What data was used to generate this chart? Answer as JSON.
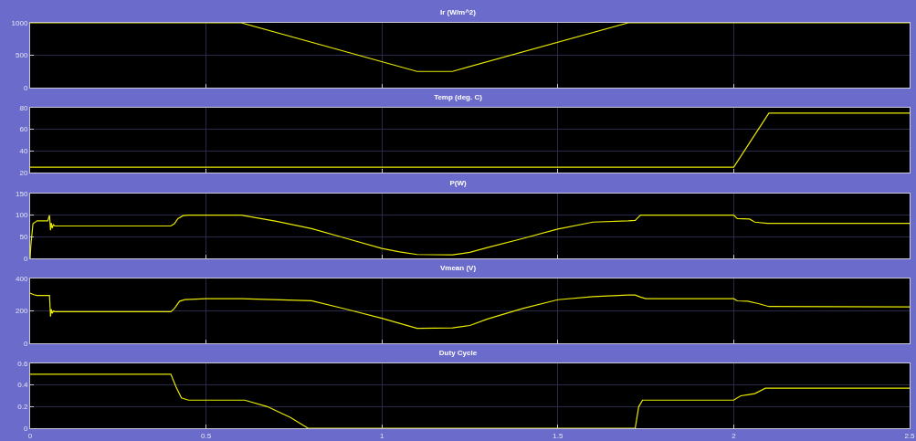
{
  "chart_data": [
    {
      "type": "line",
      "title": "Ir (W/m^2)",
      "color": "#e8e800",
      "marker": "none",
      "line_style": "solid",
      "grid": true,
      "tick_labels": "y",
      "xlim": [
        0,
        2.5
      ],
      "xticks": [
        0,
        0.5,
        1,
        1.5,
        2,
        2.5
      ],
      "ylim": [
        0,
        1000
      ],
      "yticks": [
        0,
        500,
        1000
      ],
      "x": [
        0,
        0.6,
        1.1,
        1.2,
        1.7,
        2.5
      ],
      "values": [
        1000,
        1000,
        250,
        250,
        1000,
        1000
      ]
    },
    {
      "type": "line",
      "title": "Temp (deg. C)",
      "color": "#e8e800",
      "marker": "none",
      "line_style": "solid",
      "grid": true,
      "tick_labels": "y",
      "xlim": [
        0,
        2.5
      ],
      "xticks": [
        0,
        0.5,
        1,
        1.5,
        2,
        2.5
      ],
      "ylim": [
        20,
        80
      ],
      "yticks": [
        20,
        40,
        60,
        80
      ],
      "x": [
        0,
        2.0,
        2.1,
        2.5
      ],
      "values": [
        25,
        25,
        75,
        75
      ]
    },
    {
      "type": "line",
      "title": "P(W)",
      "color": "#e8e800",
      "marker": "none",
      "line_style": "solid",
      "grid": true,
      "tick_labels": "y",
      "xlim": [
        0,
        2.5
      ],
      "xticks": [
        0,
        0.5,
        1,
        1.5,
        2,
        2.5
      ],
      "ylim": [
        0,
        150
      ],
      "yticks": [
        0,
        50,
        100,
        150
      ],
      "x": [
        0,
        0.002,
        0.008,
        0.02,
        0.05,
        0.055,
        0.058,
        0.06,
        0.063,
        0.066,
        0.07,
        0.4,
        0.41,
        0.42,
        0.435,
        0.45,
        0.6,
        0.7,
        0.8,
        0.9,
        1.0,
        1.05,
        1.1,
        1.2,
        1.25,
        1.3,
        1.4,
        1.5,
        1.6,
        1.7,
        1.72,
        1.735,
        2.0,
        2.01,
        2.045,
        2.06,
        2.095,
        2.5
      ],
      "values": [
        0,
        30,
        80,
        87,
        87,
        100,
        65,
        82,
        70,
        78,
        75,
        75,
        80,
        92,
        99,
        100,
        100,
        86,
        69,
        46,
        23,
        15,
        9,
        8,
        14,
        25,
        46,
        68,
        84,
        87,
        88,
        100,
        100,
        92,
        91,
        84,
        81,
        81
      ]
    },
    {
      "type": "line",
      "title": "Vmean (V)",
      "color": "#e8e800",
      "marker": "none",
      "line_style": "solid",
      "grid": true,
      "tick_labels": "y",
      "xlim": [
        0,
        2.5
      ],
      "xticks": [
        0,
        0.5,
        1,
        1.5,
        2,
        2.5
      ],
      "ylim": [
        0,
        400
      ],
      "yticks": [
        0,
        200,
        400
      ],
      "x": [
        0,
        0.01,
        0.02,
        0.055,
        0.058,
        0.06,
        0.063,
        0.066,
        0.07,
        0.4,
        0.41,
        0.425,
        0.44,
        0.5,
        0.6,
        0.8,
        0.9,
        1.0,
        1.1,
        1.2,
        1.25,
        1.3,
        1.4,
        1.5,
        1.6,
        1.7,
        1.72,
        1.735,
        1.75,
        2.0,
        2.01,
        2.04,
        2.07,
        2.1,
        2.5
      ],
      "values": [
        310,
        300,
        295,
        295,
        165,
        210,
        185,
        200,
        195,
        195,
        215,
        260,
        270,
        275,
        275,
        263,
        210,
        154,
        92,
        95,
        110,
        150,
        215,
        269,
        288,
        298,
        298,
        285,
        275,
        275,
        262,
        260,
        245,
        227,
        225
      ]
    },
    {
      "type": "line",
      "title": "Duty Cycle",
      "color": "#e8e800",
      "marker": "none",
      "line_style": "solid",
      "grid": true,
      "xlim": [
        0,
        2.5
      ],
      "xticks": [
        0,
        0.5,
        1,
        1.5,
        2,
        2.5
      ],
      "ylim": [
        0,
        0.6
      ],
      "yticks": [
        0,
        0.2,
        0.4,
        0.6
      ],
      "x": [
        0,
        0.4,
        0.415,
        0.43,
        0.45,
        0.61,
        0.674,
        0.74,
        0.79,
        1.72,
        1.73,
        1.741,
        2.0,
        2.02,
        2.04,
        2.06,
        2.09,
        2.5
      ],
      "values": [
        0.5,
        0.5,
        0.38,
        0.28,
        0.26,
        0.26,
        0.2,
        0.1,
        0,
        0,
        0.2,
        0.26,
        0.26,
        0.3,
        0.31,
        0.32,
        0.37,
        0.37
      ]
    }
  ]
}
